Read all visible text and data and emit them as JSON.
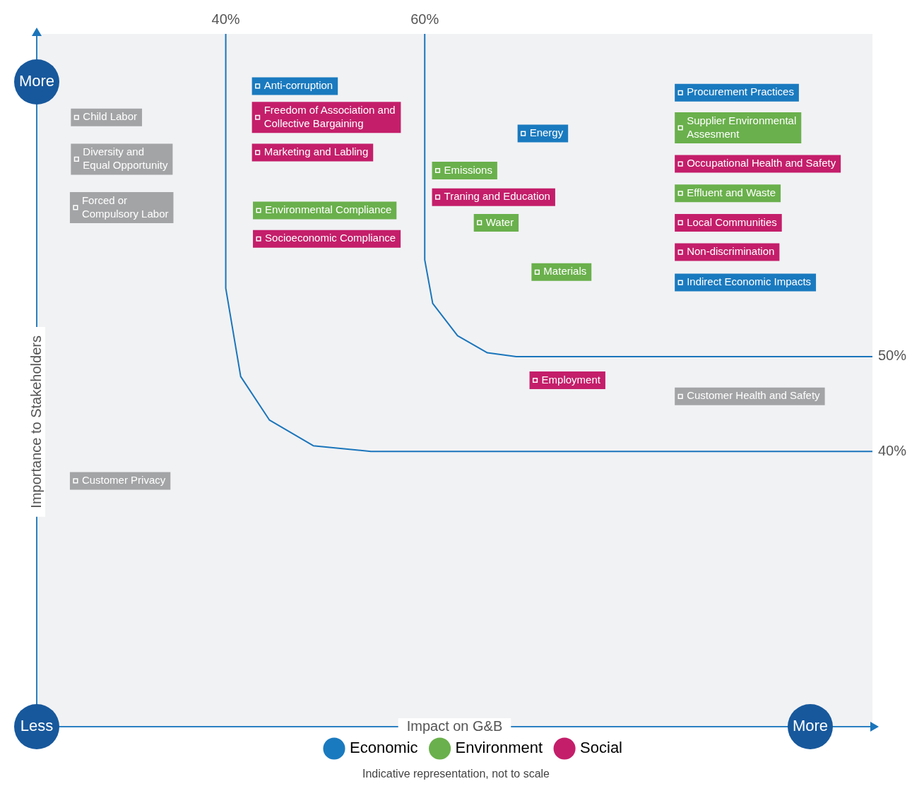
{
  "chart_data": {
    "type": "scatter",
    "xlabel": "Impact on G&B",
    "ylabel": "Importance to Stakeholders",
    "xlim": [
      21,
      105
    ],
    "xticks": [
      {
        "value": 40,
        "label": "40%"
      },
      {
        "value": 60,
        "label": "60%"
      }
    ],
    "ylim": [
      11,
      84
    ],
    "yticks": [
      {
        "value": 40,
        "label": "40%"
      },
      {
        "value": 50,
        "label": "50%"
      }
    ],
    "legend": "bottom",
    "marker": "square",
    "annotations": [
      "More",
      "Less",
      "More",
      "Indicative representation, not to scale"
    ],
    "series": [
      {
        "name": "Economic",
        "color": "#1a7abf",
        "x": [
          43.2,
          69.9,
          85.7,
          85.7
        ],
        "values": [
          78.5,
          73.5,
          77.8,
          57.8
        ],
        "value_labels": [
          "Anti-corruption",
          "Energy",
          "Procurement Practices",
          "Indirect Economic Impacts"
        ]
      },
      {
        "name": "Environment",
        "color": "#6ab04c",
        "x": [
          43.3,
          61.3,
          65.5,
          71.3,
          85.7,
          85.7
        ],
        "values": [
          65.4,
          69.6,
          64.1,
          58.9,
          74.1,
          67.2
        ],
        "value_labels": [
          "Environmental Compliance",
          "Emissions",
          "Water",
          "Materials",
          "Supplier Environmental\nAssesment",
          "Effluent and Waste"
        ]
      },
      {
        "name": "Social",
        "color": "#c41e6a",
        "x": [
          43.2,
          43.2,
          43.3,
          61.3,
          85.7,
          85.7,
          85.7,
          71.1
        ],
        "values": [
          75.2,
          71.5,
          62.4,
          66.8,
          70.3,
          64.1,
          61.0,
          47.5
        ],
        "value_labels": [
          "Freedom of Association and\nCollective Bargaining",
          "Marketing and Labling",
          "Socioeconomic Compliance",
          "Traning and Education",
          "Occupational Health and Safety",
          "Local Communities",
          "Non-discrimination",
          "Employment"
        ]
      },
      {
        "color": "#a3a4a6",
        "x": [
          25.0,
          25.0,
          24.9,
          24.9,
          85.7
        ],
        "values": [
          75.2,
          70.8,
          65.7,
          36.9,
          45.8
        ],
        "value_labels": [
          "Child Labor",
          "Diversity and\nEqual Opportunity",
          "Forced or\nCompulsory Labor",
          "Customer Privacy",
          "Customer Health and Safety"
        ]
      },
      {
        "type": "line",
        "marker": "none",
        "color": "#1a75bb",
        "x": [
          40,
          40,
          41.5,
          44.4,
          48.8,
          54.6,
          105
        ],
        "values": [
          84,
          57.2,
          47.9,
          43.3,
          40.6,
          40,
          40
        ]
      },
      {
        "type": "line",
        "marker": "none",
        "color": "#1a75bb",
        "x": [
          60,
          60,
          60.8,
          63.3,
          66.3,
          69.2,
          105
        ],
        "values": [
          84,
          60.2,
          55.6,
          52.2,
          50.4,
          50,
          50
        ]
      }
    ]
  }
}
